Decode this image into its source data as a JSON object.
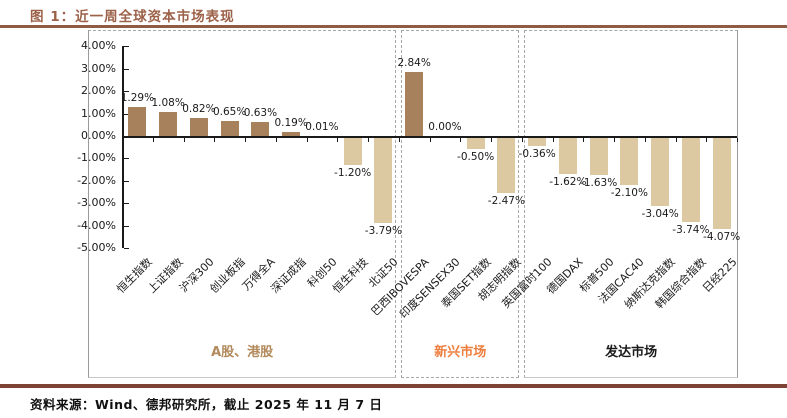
{
  "figure": {
    "title": "图 1：近一周全球资本市场表现",
    "source": "资料来源：Wind、德邦研究所，截止 2025 年 11 月 7 日"
  },
  "colors": {
    "title_brown": "#9c6148",
    "rule_top": "#8e5b44",
    "rule_bottom": "#7c4233",
    "bar_positive": "#a7805c",
    "bar_negative": "#dcc8a1",
    "axis": "#1a1a1a",
    "group_a_share": "#b28a5c",
    "group_emerging": "#ee7e3e",
    "group_developed": "#1a1a1a"
  },
  "chart_data": {
    "type": "bar",
    "title": "近一周全球资本市场表现",
    "xlabel": "",
    "ylabel": "",
    "ylim": [
      -5,
      4
    ],
    "grid": false,
    "legend": "none",
    "y_tick_labels": [
      "4.00%",
      "3.00%",
      "2.00%",
      "1.00%",
      "0.00%",
      "-1.00%",
      "-2.00%",
      "-3.00%",
      "-4.00%",
      "-5.00%"
    ],
    "categories": [
      "恒生指数",
      "上证指数",
      "沪深300",
      "创业板指",
      "万得全A",
      "深证成指",
      "科创50",
      "恒生科技",
      "北证50",
      "巴西IBOVESPA",
      "印度SENSEX30",
      "泰国SET指数",
      "胡志明指数",
      "英国富时100",
      "德国DAX",
      "标普500",
      "法国CAC40",
      "纳斯达克指数",
      "韩国综合指数",
      "日经225"
    ],
    "values": [
      1.29,
      1.08,
      0.82,
      0.65,
      0.63,
      0.19,
      0.01,
      -1.2,
      -3.79,
      2.84,
      0.0,
      -0.5,
      -2.47,
      -0.36,
      -1.62,
      -1.63,
      -2.1,
      -3.04,
      -3.74,
      -4.07
    ],
    "data_labels": [
      "1.29%",
      "1.08%",
      "0.82%",
      "0.65%",
      "0.63%",
      "0.19%",
      "0.01%",
      "-1.20%",
      "-3.79%",
      "2.84%",
      "0.00%",
      "-0.50%",
      "-2.47%",
      "-0.36%",
      "-1.62%",
      "-1.63%",
      "-2.10%",
      "-3.04%",
      "-3.74%",
      "-4.07%"
    ],
    "groups": [
      {
        "label": "A股、港股",
        "start_index": 0,
        "end_index": 8
      },
      {
        "label": "新兴市场",
        "start_index": 9,
        "end_index": 12
      },
      {
        "label": "发达市场",
        "start_index": 13,
        "end_index": 19
      }
    ]
  }
}
